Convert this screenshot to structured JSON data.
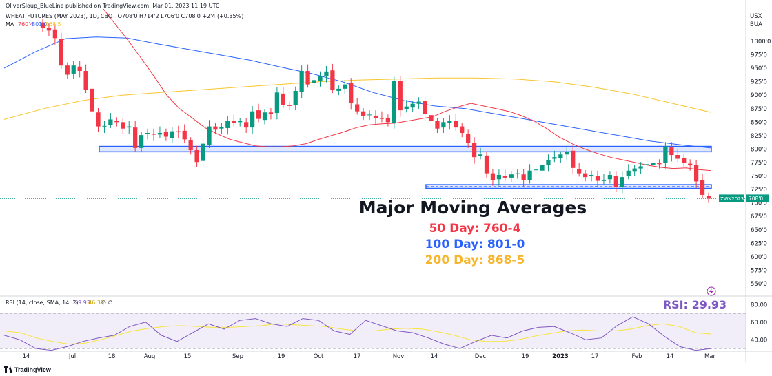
{
  "header": {
    "author_line": "OliverSloup_BlueLine published on TradingView.com, Mar 01, 2023 11:19 UTC",
    "symbol_line": "WHEAT FUTURES (MAY 2023), 1D, CBOT  O708'0  H714'2  L706'0  C708'0  +2'4 (+0.35%)",
    "ma_label": "MA",
    "ma_values": [
      "760'4",
      "801'0",
      "868'5"
    ]
  },
  "currency": {
    "line1": "USX",
    "line2": "BUA"
  },
  "price_badge": {
    "ticker": "ZWK2023",
    "value": "708'0"
  },
  "annotations": {
    "title": "Major Moving Averages",
    "ma50": "50 Day: 760-4",
    "ma100": "100 Day: 801-0",
    "ma200": "200 Day: 868-5",
    "rsi": "RSI: 29.93"
  },
  "rsi_header": {
    "label": "RSI (14, close, SMA, 14, 2)",
    "value": "29.93",
    "sma": "46.38",
    "extra": "∅  ∅"
  },
  "footer": {
    "brand": "TradingView"
  },
  "colors": {
    "ma50": "#f23645",
    "ma100": "#2962ff",
    "ma200": "#f7c52b",
    "rsi": "#7e57c2",
    "rsi_sma": "#f7e43b",
    "up": "#089981",
    "down": "#f23645",
    "zone": "#2962ff",
    "anno_title": "#131722",
    "anno_rsi": "#7e57c2"
  },
  "chart_data": {
    "type": "candlestick",
    "y_axis": {
      "ticks": [
        "1000'0",
        "975'0",
        "950'0",
        "925'0",
        "900'0",
        "875'0",
        "850'0",
        "825'0",
        "800'0",
        "775'0",
        "750'0",
        "725'0",
        "700'0",
        "675'0",
        "650'0",
        "625'0",
        "600'0",
        "575'0",
        "550'0"
      ],
      "range": [
        540,
        1060
      ]
    },
    "x_axis": {
      "ticks": [
        "14",
        "Jul",
        "18",
        "Aug",
        "15",
        "Sep",
        "19",
        "Oct",
        "17",
        "Nov",
        "14",
        "Dec",
        "19",
        "2023",
        "17",
        "Feb",
        "14",
        "Mar"
      ]
    },
    "rsi_axis": {
      "ticks": [
        "80.00",
        "60.00",
        "40.00"
      ],
      "range": [
        20,
        90
      ],
      "bands": [
        70,
        50,
        30
      ]
    },
    "zones": [
      {
        "top": 805,
        "bottom": 795,
        "x_start": "Jul 18",
        "x_end": "Mar"
      },
      {
        "top": 734,
        "bottom": 727,
        "x_start": "Jan 25",
        "x_end": "Mar"
      }
    ],
    "last_price": 708,
    "close_path": [
      1025,
      1020,
      1006,
      955,
      938,
      955,
      945,
      910,
      870,
      842,
      843,
      855,
      850,
      838,
      842,
      802,
      826,
      830,
      827,
      830,
      823,
      833,
      832,
      818,
      798,
      776,
      810,
      842,
      836,
      841,
      852,
      848,
      852,
      840,
      870,
      856,
      868,
      865,
      905,
      882,
      880,
      908,
      945,
      920,
      928,
      936,
      944,
      910,
      912,
      920,
      885,
      870,
      862,
      864,
      858,
      856,
      850,
      926,
      872,
      879,
      884,
      888,
      865,
      852,
      838,
      850,
      853,
      840,
      830,
      812,
      785,
      790,
      755,
      742,
      752,
      747,
      753,
      755,
      742,
      760,
      762,
      770,
      780,
      785,
      790,
      795,
      765,
      755,
      748,
      752,
      741,
      742,
      752,
      730,
      748,
      760,
      764,
      768,
      772,
      775,
      772,
      805,
      789,
      782,
      775,
      770,
      740,
      715,
      708
    ],
    "ma50_path": [
      1060,
      1030,
      1000,
      968,
      935,
      900,
      875,
      858,
      840,
      828,
      818,
      812,
      806,
      804,
      804,
      806,
      810,
      818,
      825,
      832,
      840,
      845,
      847,
      848,
      852,
      856,
      860,
      870,
      878,
      885,
      880,
      875,
      870,
      862,
      852,
      838,
      822,
      810,
      800,
      792,
      785,
      780,
      775,
      770,
      766,
      764,
      765,
      762,
      760
    ],
    "ma100_path": [
      950,
      980,
      1005,
      1008,
      1006,
      995,
      985,
      975,
      965,
      952,
      940,
      925,
      905,
      890,
      880,
      875,
      865,
      855,
      845,
      835,
      825,
      815,
      808,
      802
    ],
    "ma200_path": [
      855,
      875,
      890,
      900,
      905,
      910,
      915,
      920,
      925,
      928,
      930,
      932,
      932,
      930,
      925,
      915,
      902,
      885,
      868
    ],
    "rsi_path": [
      45,
      40,
      30,
      28,
      32,
      38,
      42,
      45,
      55,
      60,
      45,
      38,
      48,
      58,
      52,
      62,
      64,
      58,
      55,
      64,
      62,
      50,
      46,
      62,
      56,
      50,
      48,
      42,
      35,
      30,
      38,
      45,
      42,
      50,
      54,
      55,
      48,
      40,
      42,
      56,
      66,
      58,
      44,
      32,
      28,
      29.93
    ],
    "rsi_sma_path": [
      50,
      48,
      42,
      38,
      35,
      36,
      40,
      45,
      50,
      53,
      55,
      56,
      55,
      54,
      54,
      55,
      56,
      58,
      57,
      56,
      55,
      52,
      50,
      50,
      52,
      53,
      52,
      49,
      45,
      40,
      38,
      38,
      40,
      44,
      47,
      50,
      51,
      50,
      50,
      52,
      56,
      58,
      55,
      48,
      46.38
    ]
  }
}
